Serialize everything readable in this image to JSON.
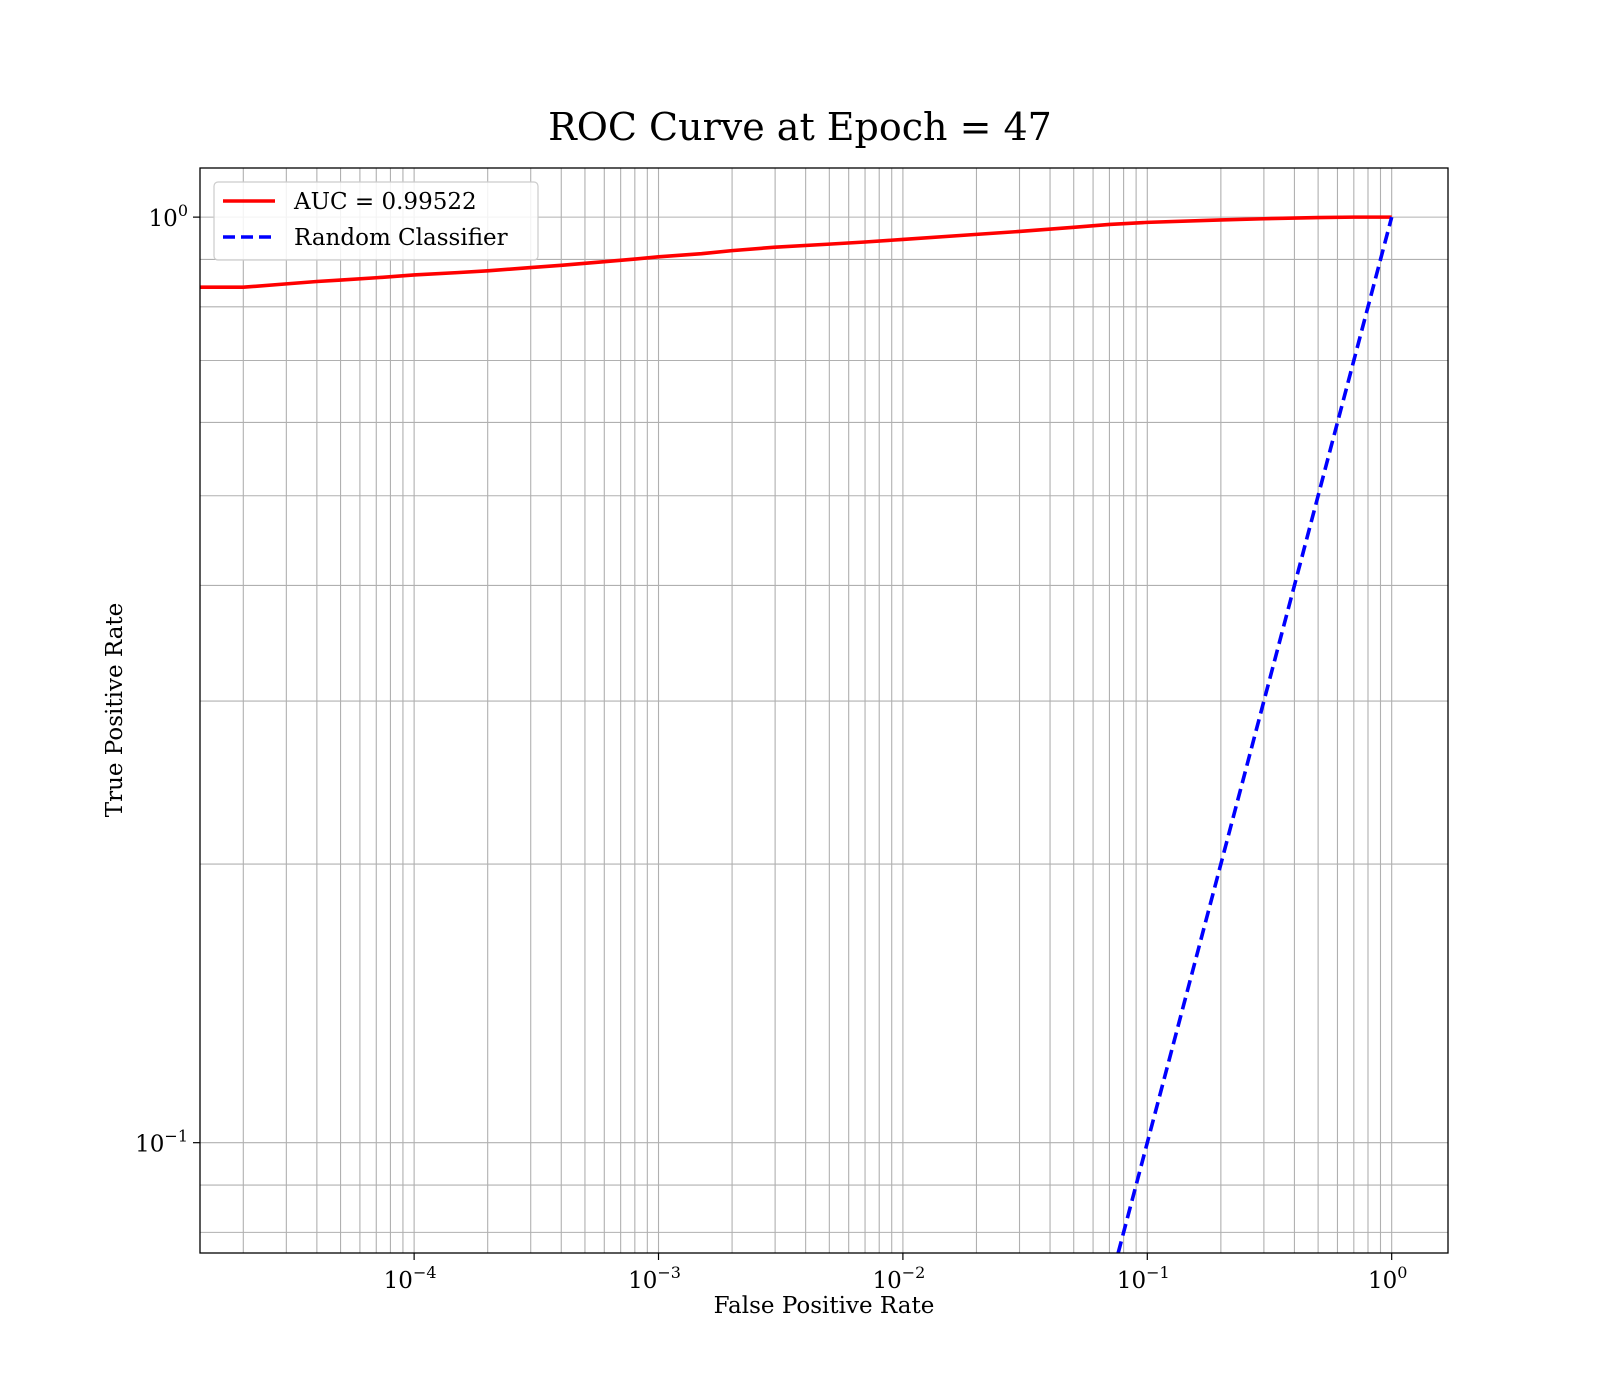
{
  "chart_data": {
    "type": "line",
    "title": "ROC Curve at Epoch = 47",
    "xlabel": "False Positive Rate",
    "ylabel": "True Positive Rate",
    "xscale": "log",
    "yscale": "log",
    "xlim": [
      1.33e-05,
      1.7
    ],
    "ylim": [
      0.076,
      1.13
    ],
    "grid": true,
    "grid_which": "both",
    "legend_position": "upper-left",
    "x_ticks": [
      {
        "base": "10",
        "exp": "−4",
        "value": 0.0001
      },
      {
        "base": "10",
        "exp": "−3",
        "value": 0.001
      },
      {
        "base": "10",
        "exp": "−2",
        "value": 0.01
      },
      {
        "base": "10",
        "exp": "−1",
        "value": 0.1
      },
      {
        "base": "10",
        "exp": "0",
        "value": 1
      }
    ],
    "y_ticks": [
      {
        "base": "10",
        "exp": "−1",
        "value": 0.1
      },
      {
        "base": "10",
        "exp": "0",
        "value": 1
      }
    ],
    "series": [
      {
        "name": "AUC = 0.99522",
        "color": "#ff0000",
        "style": "solid",
        "x": [
          1.33e-05,
          2e-05,
          3e-05,
          4e-05,
          5e-05,
          7e-05,
          0.0001,
          0.00015,
          0.0002,
          0.0003,
          0.0004,
          0.0006,
          0.0008,
          0.001,
          0.0015,
          0.002,
          0.003,
          0.005,
          0.007,
          0.01,
          0.02,
          0.03,
          0.05,
          0.07,
          0.1,
          0.2,
          0.3,
          0.5,
          0.7,
          1.0
        ],
        "y": [
          0.84,
          0.84,
          0.847,
          0.852,
          0.855,
          0.86,
          0.866,
          0.871,
          0.875,
          0.882,
          0.887,
          0.895,
          0.901,
          0.906,
          0.913,
          0.92,
          0.928,
          0.935,
          0.94,
          0.946,
          0.958,
          0.965,
          0.975,
          0.982,
          0.987,
          0.993,
          0.996,
          0.999,
          1.0,
          1.0
        ]
      },
      {
        "name": "Random Classifier",
        "color": "#0000ff",
        "style": "dashed",
        "x": [
          0.076,
          1.0
        ],
        "y": [
          0.076,
          1.0
        ]
      }
    ]
  }
}
